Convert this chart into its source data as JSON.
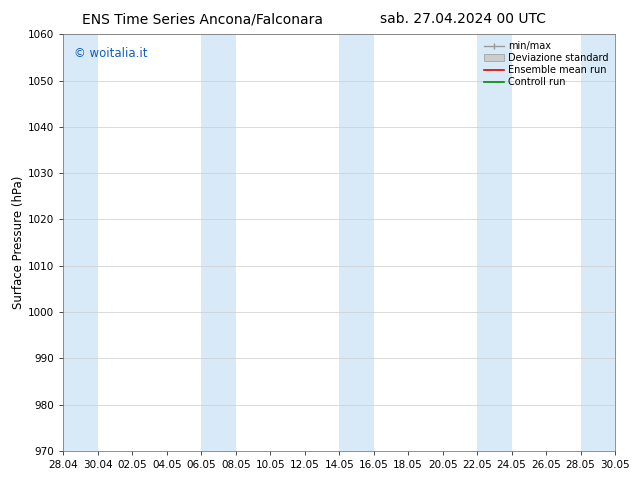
{
  "title_left": "ENS Time Series Ancona/Falconara",
  "title_right": "sab. 27.04.2024 00 UTC",
  "ylabel": "Surface Pressure (hPa)",
  "ylim": [
    970,
    1060
  ],
  "yticks": [
    970,
    980,
    990,
    1000,
    1010,
    1020,
    1030,
    1040,
    1050,
    1060
  ],
  "xlim": [
    0,
    32
  ],
  "xtick_labels": [
    "28.04",
    "30.04",
    "02.05",
    "04.05",
    "06.05",
    "08.05",
    "10.05",
    "12.05",
    "14.05",
    "16.05",
    "18.05",
    "20.05",
    "22.05",
    "24.05",
    "26.05",
    "28.05",
    "30.05"
  ],
  "xtick_positions": [
    0,
    2,
    4,
    6,
    8,
    10,
    12,
    14,
    16,
    18,
    20,
    22,
    24,
    26,
    28,
    30,
    32
  ],
  "band_color": "#d8eaf7",
  "band_positions": [
    0,
    2,
    8,
    10,
    16,
    18,
    24,
    26,
    30,
    32
  ],
  "background_color": "#ffffff",
  "watermark": "© woitalia.it",
  "watermark_color": "#1060c0",
  "legend_labels": [
    "min/max",
    "Deviazione standard",
    "Ensemble mean run",
    "Controll run"
  ],
  "title_fontsize": 10,
  "tick_fontsize": 7.5,
  "ylabel_fontsize": 8.5
}
